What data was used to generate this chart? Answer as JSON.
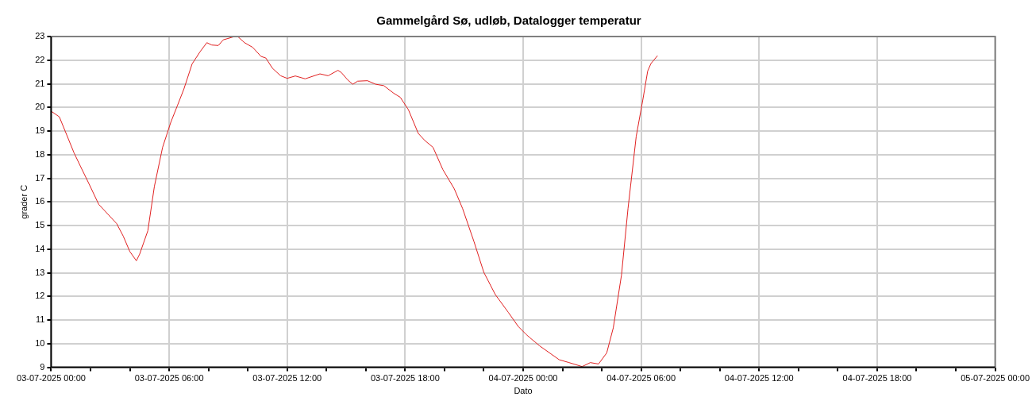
{
  "chart_data": {
    "type": "line",
    "title": "Gammelgård Sø, udløb, Datalogger temperatur",
    "xlabel": "Dato",
    "ylabel": "grader C",
    "x": [
      "2025-07-03T00:00",
      "2025-07-03T00:25",
      "2025-07-03T01:10",
      "2025-07-03T01:30",
      "2025-07-03T01:55",
      "2025-07-03T02:25",
      "2025-07-03T03:20",
      "2025-07-03T03:40",
      "2025-07-03T04:00",
      "2025-07-03T04:20",
      "2025-07-03T04:30",
      "2025-07-03T04:55",
      "2025-07-03T05:15",
      "2025-07-03T05:40",
      "2025-07-03T06:05",
      "2025-07-03T06:25",
      "2025-07-03T06:45",
      "2025-07-03T07:10",
      "2025-07-03T07:35",
      "2025-07-03T07:55",
      "2025-07-03T08:10",
      "2025-07-03T08:30",
      "2025-07-03T08:45",
      "2025-07-03T09:20",
      "2025-07-03T09:30",
      "2025-07-03T09:50",
      "2025-07-03T10:15",
      "2025-07-03T10:40",
      "2025-07-03T10:55",
      "2025-07-03T11:15",
      "2025-07-03T11:40",
      "2025-07-03T12:00",
      "2025-07-03T12:25",
      "2025-07-03T12:55",
      "2025-07-03T13:40",
      "2025-07-03T14:05",
      "2025-07-03T14:35",
      "2025-07-03T14:45",
      "2025-07-03T15:05",
      "2025-07-03T15:20",
      "2025-07-03T15:35",
      "2025-07-03T16:05",
      "2025-07-03T16:30",
      "2025-07-03T16:55",
      "2025-07-03T17:25",
      "2025-07-03T17:45",
      "2025-07-03T18:10",
      "2025-07-03T18:40",
      "2025-07-03T19:00",
      "2025-07-03T19:25",
      "2025-07-03T19:55",
      "2025-07-03T20:30",
      "2025-07-03T20:55",
      "2025-07-03T21:30",
      "2025-07-03T22:00",
      "2025-07-03T22:35",
      "2025-07-03T23:15",
      "2025-07-03T23:45",
      "2025-07-04T00:10",
      "2025-07-04T00:20",
      "2025-07-04T00:50",
      "2025-07-04T01:50",
      "2025-07-04T02:20",
      "2025-07-04T03:00",
      "2025-07-04T03:25",
      "2025-07-04T03:50",
      "2025-07-04T04:15",
      "2025-07-04T04:35",
      "2025-07-04T05:00",
      "2025-07-04T05:20",
      "2025-07-04T05:45",
      "2025-07-04T06:05",
      "2025-07-04T06:20",
      "2025-07-04T06:30",
      "2025-07-04T06:50"
    ],
    "series": [
      {
        "color": "#e02020",
        "values": [
          19.84,
          19.6,
          18.07,
          17.49,
          16.78,
          15.9,
          15.08,
          14.55,
          13.9,
          13.51,
          13.79,
          14.78,
          16.66,
          18.31,
          19.37,
          20.07,
          20.78,
          21.84,
          22.37,
          22.74,
          22.64,
          22.62,
          22.86,
          23.0,
          22.99,
          22.74,
          22.54,
          22.16,
          22.09,
          21.66,
          21.34,
          21.23,
          21.33,
          21.21,
          21.42,
          21.34,
          21.57,
          21.48,
          21.16,
          20.98,
          21.11,
          21.13,
          20.98,
          20.92,
          20.6,
          20.43,
          19.9,
          18.9,
          18.6,
          18.31,
          17.37,
          16.55,
          15.73,
          14.32,
          13.02,
          12.08,
          11.32,
          10.73,
          10.38,
          10.26,
          9.91,
          9.32,
          9.2,
          9.03,
          9.2,
          9.14,
          9.61,
          10.67,
          12.9,
          15.73,
          18.78,
          20.31,
          21.54,
          21.86,
          22.19
        ]
      }
    ],
    "xlim": [
      "2025-07-03T00:00",
      "2025-07-05T00:00"
    ],
    "xticks": [
      {
        "value": "2025-07-03T00:00",
        "label": "03-07-2025 00:00"
      },
      {
        "value": "2025-07-03T02:00",
        "label": null
      },
      {
        "value": "2025-07-03T04:00",
        "label": null
      },
      {
        "value": "2025-07-03T06:00",
        "label": "03-07-2025 06:00"
      },
      {
        "value": "2025-07-03T08:00",
        "label": null
      },
      {
        "value": "2025-07-03T10:00",
        "label": null
      },
      {
        "value": "2025-07-03T12:00",
        "label": "03-07-2025 12:00"
      },
      {
        "value": "2025-07-03T14:00",
        "label": null
      },
      {
        "value": "2025-07-03T16:00",
        "label": null
      },
      {
        "value": "2025-07-03T18:00",
        "label": "03-07-2025 18:00"
      },
      {
        "value": "2025-07-03T20:00",
        "label": null
      },
      {
        "value": "2025-07-03T22:00",
        "label": null
      },
      {
        "value": "2025-07-04T00:00",
        "label": "04-07-2025 00:00"
      },
      {
        "value": "2025-07-04T02:00",
        "label": null
      },
      {
        "value": "2025-07-04T04:00",
        "label": null
      },
      {
        "value": "2025-07-04T06:00",
        "label": "04-07-2025 06:00"
      },
      {
        "value": "2025-07-04T08:00",
        "label": null
      },
      {
        "value": "2025-07-04T10:00",
        "label": null
      },
      {
        "value": "2025-07-04T12:00",
        "label": "04-07-2025 12:00"
      },
      {
        "value": "2025-07-04T14:00",
        "label": null
      },
      {
        "value": "2025-07-04T16:00",
        "label": null
      },
      {
        "value": "2025-07-04T18:00",
        "label": "04-07-2025 18:00"
      },
      {
        "value": "2025-07-04T20:00",
        "label": null
      },
      {
        "value": "2025-07-04T22:00",
        "label": null
      },
      {
        "value": "2025-07-05T00:00",
        "label": "05-07-2025 00:00"
      }
    ],
    "ylim": [
      9,
      23
    ],
    "yticks": [
      9,
      10,
      11,
      12,
      13,
      14,
      15,
      16,
      17,
      18,
      19,
      20,
      21,
      22,
      23
    ],
    "grid": true,
    "legend": false,
    "marker": "none",
    "line_style": "solid"
  }
}
